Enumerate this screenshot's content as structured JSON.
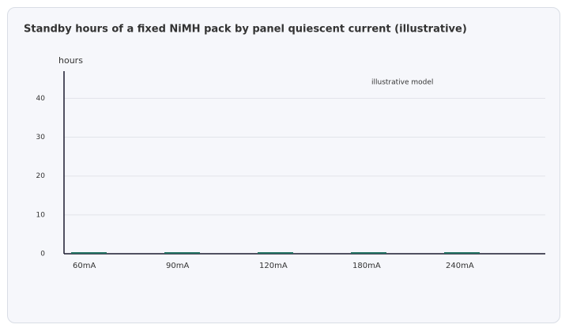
{
  "chart_data": {
    "type": "bar",
    "title": "Standby hours of a fixed NiMH pack by panel quiescent current (illustrative)",
    "y_label": "hours",
    "annotation": "illustrative model",
    "categories": [
      "60mA",
      "90mA",
      "120mA",
      "180mA",
      "240mA"
    ],
    "values": [
      0.4,
      0.4,
      0.4,
      0.4,
      0.4
    ],
    "color": "#1f6f5f",
    "ylim": [
      0,
      47
    ],
    "yticks": [
      0,
      10,
      20,
      30,
      40
    ],
    "grid": true
  }
}
